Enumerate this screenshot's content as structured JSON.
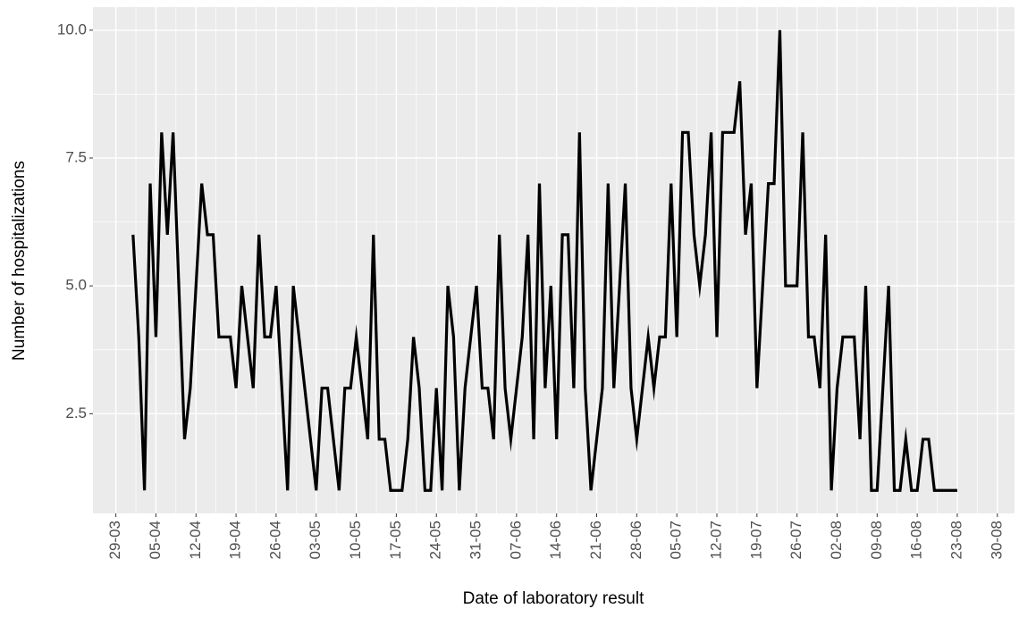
{
  "chart_data": {
    "type": "line",
    "x_label": "Date of laboratory result",
    "y_label": "Number of hospitalizations",
    "x": [
      "01-04",
      "02-04",
      "03-04",
      "04-04",
      "05-04",
      "06-04",
      "07-04",
      "08-04",
      "09-04",
      "10-04",
      "11-04",
      "12-04",
      "13-04",
      "14-04",
      "15-04",
      "16-04",
      "17-04",
      "18-04",
      "19-04",
      "20-04",
      "21-04",
      "22-04",
      "23-04",
      "24-04",
      "25-04",
      "26-04",
      "27-04",
      "28-04",
      "29-04",
      "30-04",
      "01-05",
      "02-05",
      "03-05",
      "04-05",
      "05-05",
      "06-05",
      "07-05",
      "08-05",
      "09-05",
      "10-05",
      "11-05",
      "12-05",
      "13-05",
      "14-05",
      "15-05",
      "16-05",
      "17-05",
      "18-05",
      "19-05",
      "20-05",
      "21-05",
      "22-05",
      "23-05",
      "24-05",
      "25-05",
      "26-05",
      "27-05",
      "28-05",
      "29-05",
      "30-05",
      "31-05",
      "01-06",
      "02-06",
      "03-06",
      "04-06",
      "05-06",
      "06-06",
      "07-06",
      "08-06",
      "09-06",
      "10-06",
      "11-06",
      "12-06",
      "13-06",
      "14-06",
      "15-06",
      "16-06",
      "17-06",
      "18-06",
      "19-06",
      "20-06",
      "21-06",
      "22-06",
      "23-06",
      "24-06",
      "25-06",
      "26-06",
      "27-06",
      "28-06",
      "29-06",
      "30-06",
      "01-07",
      "02-07",
      "03-07",
      "04-07",
      "05-07",
      "06-07",
      "07-07",
      "08-07",
      "09-07",
      "10-07",
      "11-07",
      "12-07",
      "13-07",
      "14-07",
      "15-07",
      "16-07",
      "17-07",
      "18-07",
      "19-07",
      "20-07",
      "21-07",
      "22-07",
      "23-07",
      "24-07",
      "25-07",
      "26-07",
      "27-07",
      "28-07",
      "29-07",
      "30-07",
      "31-07",
      "01-08",
      "02-08",
      "03-08",
      "04-08",
      "05-08",
      "06-08",
      "07-08",
      "08-08",
      "09-08",
      "10-08",
      "11-08",
      "12-08",
      "13-08",
      "14-08",
      "15-08",
      "16-08",
      "17-08",
      "18-08",
      "19-08",
      "20-08",
      "21-08",
      "22-08",
      "23-08"
    ],
    "series": [
      {
        "name": "hospitalizations",
        "color": "#000000",
        "values": [
          6,
          4,
          1,
          7,
          4,
          8,
          6,
          8,
          5,
          2,
          3,
          5,
          7,
          6,
          6,
          4,
          4,
          4,
          3,
          5,
          4,
          3,
          6,
          4,
          4,
          5,
          3,
          1,
          5,
          4,
          3,
          2,
          1,
          3,
          3,
          2,
          1,
          3,
          3,
          4,
          3,
          2,
          6,
          2,
          2,
          1,
          1,
          1,
          2,
          4,
          3,
          1,
          1,
          3,
          1,
          5,
          4,
          1,
          3,
          4,
          5,
          3,
          3,
          2,
          6,
          3,
          2,
          3,
          4,
          6,
          2,
          7,
          3,
          5,
          2,
          6,
          6,
          3,
          8,
          3,
          1,
          2,
          3,
          7,
          3,
          5,
          7,
          3,
          2,
          3,
          4,
          3,
          4,
          4,
          7,
          4,
          8,
          8,
          6,
          5,
          6,
          8,
          4,
          8,
          8,
          8,
          9,
          6,
          7,
          3,
          5,
          7,
          7,
          10,
          5,
          5,
          5,
          8,
          4,
          4,
          3,
          6,
          1,
          3,
          4,
          4,
          4,
          2,
          5,
          1,
          1,
          3,
          5,
          1,
          1,
          2,
          1,
          1,
          2,
          2,
          1,
          1,
          1,
          1,
          1
        ]
      }
    ],
    "xlim": [
      "25-03",
      "02-09"
    ],
    "xticks": [
      "29-03",
      "05-04",
      "12-04",
      "19-04",
      "26-04",
      "03-05",
      "10-05",
      "17-05",
      "24-05",
      "31-05",
      "07-06",
      "14-06",
      "21-06",
      "28-06",
      "05-07",
      "12-07",
      "19-07",
      "26-07",
      "02-08",
      "09-08",
      "16-08",
      "23-08",
      "30-08"
    ],
    "ylim": [
      0.55,
      10.45
    ],
    "yticks": [
      2.5,
      {
        "value": 5,
        "label": "5.0"
      },
      7.5,
      {
        "value": 10,
        "label": "10.0"
      }
    ],
    "grid": true,
    "background": "#ebebeb"
  }
}
